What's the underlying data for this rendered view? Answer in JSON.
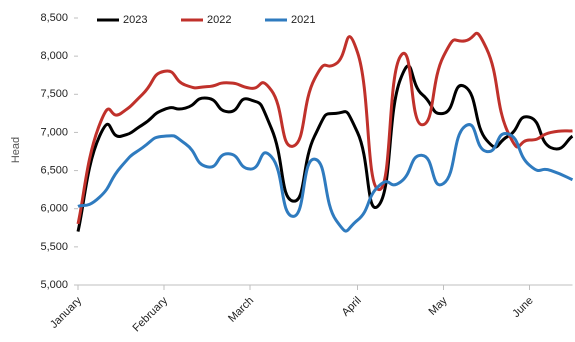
{
  "chart_data": {
    "type": "line",
    "y_label": "Head",
    "categories": [
      "January",
      null,
      null,
      null,
      "February",
      null,
      null,
      null,
      "March",
      null,
      null,
      null,
      null,
      "April",
      null,
      null,
      null,
      "May",
      null,
      null,
      null,
      "June",
      null,
      null
    ],
    "series": [
      {
        "name": "2023",
        "color": "#000000",
        "values": [
          5700,
          6950,
          6950,
          7100,
          7300,
          7320,
          7450,
          7270,
          7430,
          7050,
          6100,
          6950,
          7250,
          7000,
          6050,
          7700,
          7500,
          7250,
          7600,
          6900,
          6950,
          7200,
          6800,
          6950
        ]
      },
      {
        "name": "2022",
        "color": "#c0312b",
        "values": [
          5800,
          7100,
          7250,
          7500,
          7800,
          7620,
          7600,
          7650,
          7580,
          7550,
          6820,
          7700,
          7900,
          8050,
          6250,
          8000,
          7100,
          8000,
          8200,
          8100,
          7000,
          6900,
          7000,
          7020
        ]
      },
      {
        "name": "2021",
        "color": "#2f7bbf",
        "values": [
          6030,
          6150,
          6550,
          6800,
          6950,
          6850,
          6550,
          6720,
          6520,
          6680,
          5900,
          6650,
          5850,
          5850,
          6300,
          6350,
          6700,
          6330,
          7080,
          6750,
          6980,
          6570,
          6500,
          6380
        ]
      }
    ],
    "ylim": [
      5000,
      8500
    ],
    "yticks": [
      {
        "value": 5000,
        "label": "5,000"
      },
      {
        "value": 5500,
        "label": "5,500"
      },
      {
        "value": 6000,
        "label": "6,000"
      },
      {
        "value": 6500,
        "label": "6,500"
      },
      {
        "value": 7000,
        "label": "7,000"
      },
      {
        "value": 7500,
        "label": "7,500"
      },
      {
        "value": 8000,
        "label": "8,000"
      },
      {
        "value": 8500,
        "label": "8,500"
      }
    ],
    "legend": "top"
  }
}
